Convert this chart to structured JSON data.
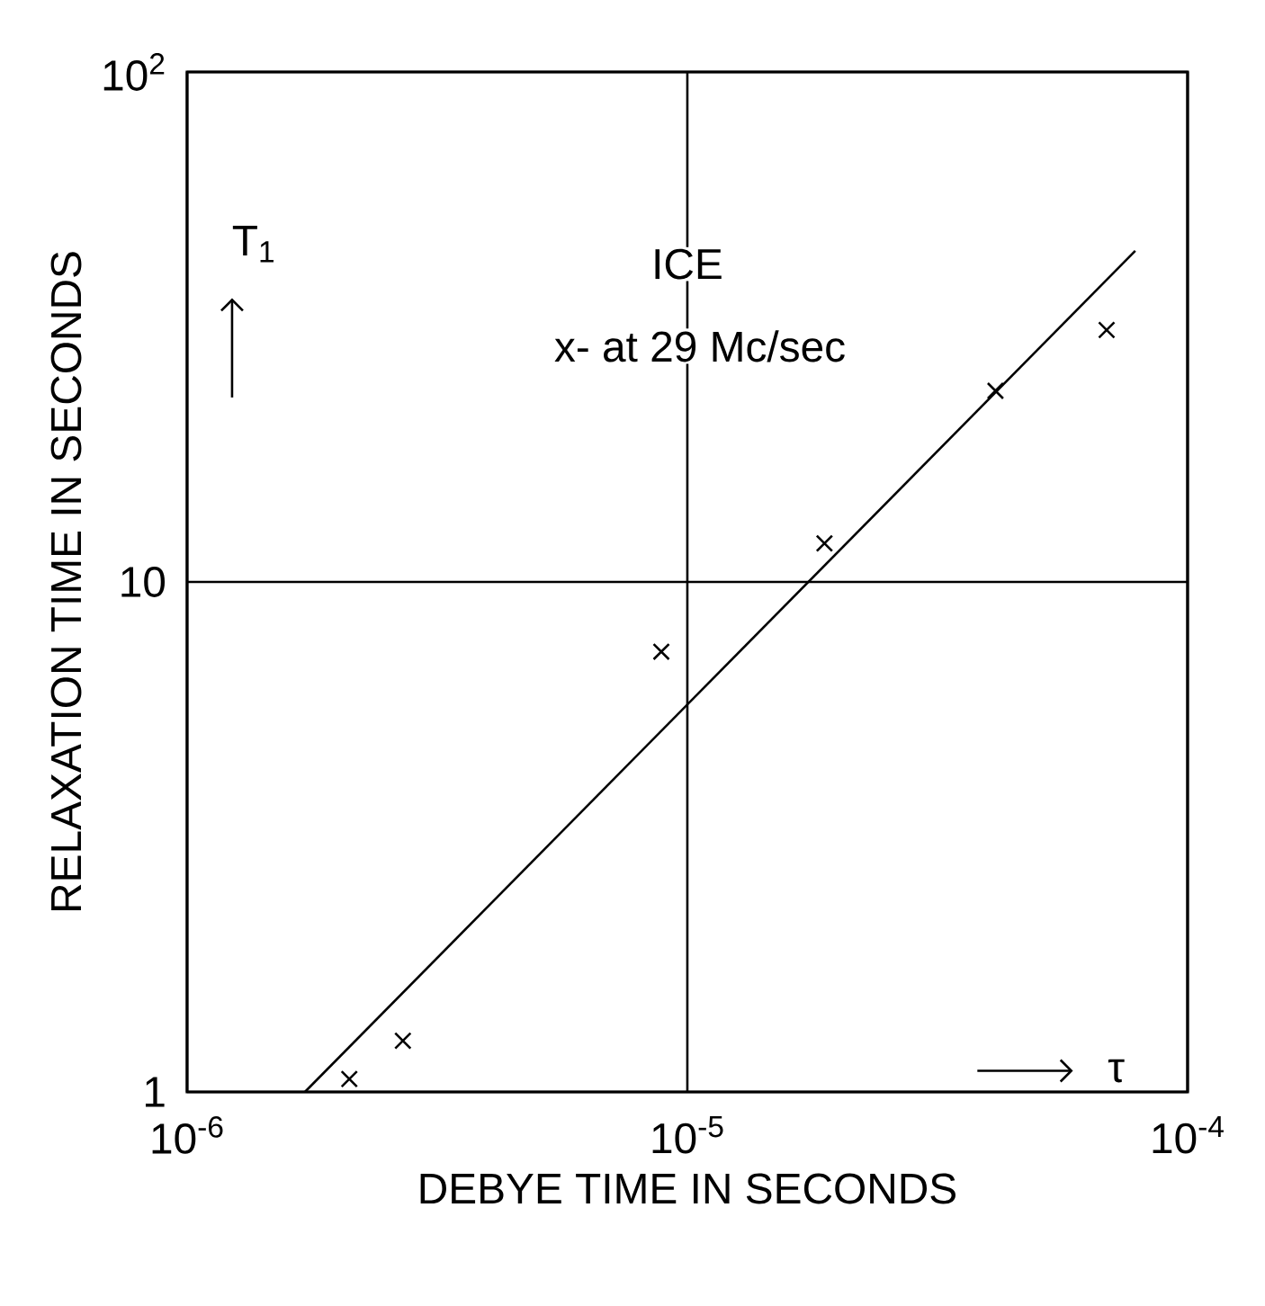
{
  "chart_data": {
    "type": "scatter",
    "xlabel": "DEBYE TIME IN SECONDS",
    "ylabel": "RELAXATION TIME IN SECONDS",
    "log": "xy",
    "grid": true,
    "xlim": [
      1e-06,
      0.0001
    ],
    "ylim": [
      1,
      100
    ],
    "xticks": [
      {
        "value": 1e-06,
        "label": "10$^{-6}$"
      },
      {
        "value": 1e-05,
        "label": "10$^{-5}$"
      },
      {
        "value": 0.0001,
        "label": "10$^{-4}$"
      }
    ],
    "yticks": [
      1,
      10,
      {
        "value": 100,
        "label": "10$^{2}$"
      }
    ],
    "series": [
      {
        "color": "#000000",
        "marker": "cross",
        "x": [
          2.11e-06,
          2.7e-06,
          8.87e-06,
          1.88e-05,
          4.13e-05,
          6.89e-05
        ],
        "values": [
          1.06,
          1.26,
          7.3,
          11.9,
          23.7,
          31.2
        ]
      },
      {
        "type": "line",
        "color": "#000000",
        "marker": "none",
        "line_style": "solid",
        "x": [
          1.72e-06,
          7.86e-05
        ],
        "values": [
          1,
          44.6
        ]
      }
    ],
    "annotations": [
      "T$_{1}$",
      "ICE",
      "x- at 29 Mc/sec",
      "τ"
    ]
  }
}
